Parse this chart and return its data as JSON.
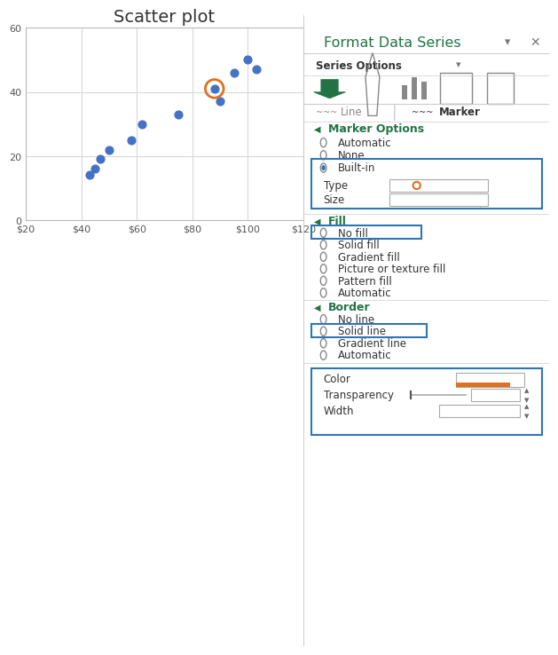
{
  "title": "Scatter plot",
  "scatter_x": [
    43,
    45,
    47,
    50,
    58,
    62,
    75,
    88,
    90,
    95,
    100,
    103
  ],
  "scatter_y": [
    14,
    16,
    19,
    22,
    25,
    30,
    33,
    41,
    37,
    46,
    50,
    47
  ],
  "highlight_x": 88,
  "highlight_y": 41,
  "dot_color": "#4472C4",
  "highlight_ring_color": "#E07020",
  "xlim": [
    20,
    120
  ],
  "ylim": [
    0,
    60
  ],
  "xticks": [
    20,
    40,
    60,
    80,
    100,
    120
  ],
  "yticks": [
    0,
    20,
    40,
    60
  ],
  "xtick_labels": [
    "$20",
    "$40",
    "$60",
    "$80",
    "$100",
    "$120"
  ],
  "ytick_labels": [
    "0",
    "20",
    "40",
    "60"
  ],
  "bg_color": "#FFFFFF",
  "plot_bg_color": "#FFFFFF",
  "grid_color": "#D9D9D9",
  "title_fontsize": 14,
  "panel_title_color": "#217346",
  "panel_bg": "#FFFFFF",
  "green_color": "#217346",
  "blue_border_color": "#2E75B6",
  "text_dark": "#333333",
  "text_mid": "#666666",
  "orange_color": "#E07020"
}
